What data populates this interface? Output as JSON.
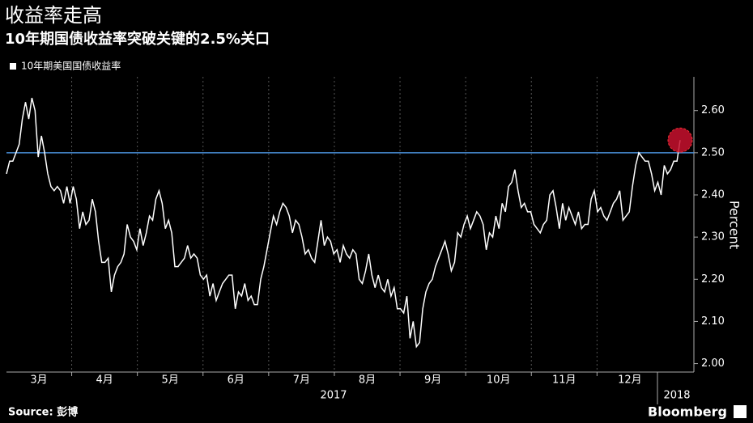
{
  "chart_data": {
    "type": "line",
    "title": "收益率走高",
    "subtitle": "10年期国债收益率突破关键的2.5%关口",
    "y_axis_label": "Percent",
    "source": "Source: 彭博",
    "brand": "Bloomberg",
    "x_labels": [
      "3月",
      "4月",
      "5月",
      "6月",
      "7月",
      "8月",
      "9月",
      "10月",
      "11月",
      "12月"
    ],
    "year_labels": [
      "2017",
      "2018"
    ],
    "ylim": [
      1.98,
      2.68
    ],
    "yticks": [
      {
        "value": 2.0,
        "label": "2.00"
      },
      {
        "value": 2.1,
        "label": "2.10"
      },
      {
        "value": 2.2,
        "label": "2.20"
      },
      {
        "value": 2.3,
        "label": "2.30"
      },
      {
        "value": 2.4,
        "label": "2.40"
      },
      {
        "value": 2.5,
        "label": "2.50"
      },
      {
        "value": 2.6,
        "label": "2.60"
      }
    ],
    "reference_line": {
      "value": 2.5,
      "color": "#4a90d9"
    },
    "highlight_color": "#c8102e",
    "series": [
      {
        "name": "10年期美国国债收益率",
        "color": "#ffffff",
        "values": [
          2.45,
          2.48,
          2.48,
          2.5,
          2.52,
          2.58,
          2.62,
          2.58,
          2.63,
          2.6,
          2.49,
          2.54,
          2.5,
          2.45,
          2.42,
          2.41,
          2.42,
          2.41,
          2.38,
          2.42,
          2.38,
          2.42,
          2.39,
          2.32,
          2.36,
          2.33,
          2.34,
          2.39,
          2.36,
          2.29,
          2.24,
          2.24,
          2.25,
          2.17,
          2.21,
          2.23,
          2.24,
          2.26,
          2.33,
          2.3,
          2.29,
          2.27,
          2.32,
          2.28,
          2.31,
          2.35,
          2.34,
          2.39,
          2.41,
          2.38,
          2.32,
          2.34,
          2.31,
          2.23,
          2.23,
          2.24,
          2.25,
          2.28,
          2.25,
          2.26,
          2.25,
          2.21,
          2.2,
          2.21,
          2.16,
          2.19,
          2.15,
          2.17,
          2.19,
          2.2,
          2.21,
          2.21,
          2.13,
          2.17,
          2.16,
          2.19,
          2.15,
          2.16,
          2.14,
          2.14,
          2.2,
          2.23,
          2.27,
          2.31,
          2.35,
          2.33,
          2.36,
          2.38,
          2.37,
          2.35,
          2.31,
          2.34,
          2.33,
          2.3,
          2.26,
          2.27,
          2.25,
          2.24,
          2.29,
          2.34,
          2.28,
          2.3,
          2.29,
          2.26,
          2.27,
          2.24,
          2.28,
          2.26,
          2.25,
          2.27,
          2.26,
          2.2,
          2.19,
          2.22,
          2.26,
          2.21,
          2.18,
          2.21,
          2.18,
          2.17,
          2.2,
          2.16,
          2.18,
          2.13,
          2.13,
          2.12,
          2.16,
          2.06,
          2.1,
          2.04,
          2.05,
          2.13,
          2.17,
          2.19,
          2.2,
          2.23,
          2.25,
          2.27,
          2.29,
          2.26,
          2.22,
          2.24,
          2.31,
          2.3,
          2.33,
          2.35,
          2.32,
          2.34,
          2.36,
          2.35,
          2.33,
          2.27,
          2.31,
          2.3,
          2.35,
          2.32,
          2.38,
          2.36,
          2.42,
          2.43,
          2.46,
          2.41,
          2.37,
          2.38,
          2.36,
          2.36,
          2.33,
          2.32,
          2.31,
          2.33,
          2.34,
          2.4,
          2.41,
          2.37,
          2.32,
          2.38,
          2.34,
          2.37,
          2.35,
          2.33,
          2.36,
          2.32,
          2.33,
          2.33,
          2.39,
          2.41,
          2.36,
          2.37,
          2.35,
          2.34,
          2.36,
          2.38,
          2.39,
          2.41,
          2.34,
          2.35,
          2.36,
          2.42,
          2.47,
          2.5,
          2.49,
          2.48,
          2.48,
          2.45,
          2.41,
          2.43,
          2.4,
          2.47,
          2.45,
          2.46,
          2.48,
          2.48,
          2.53
        ]
      }
    ]
  }
}
